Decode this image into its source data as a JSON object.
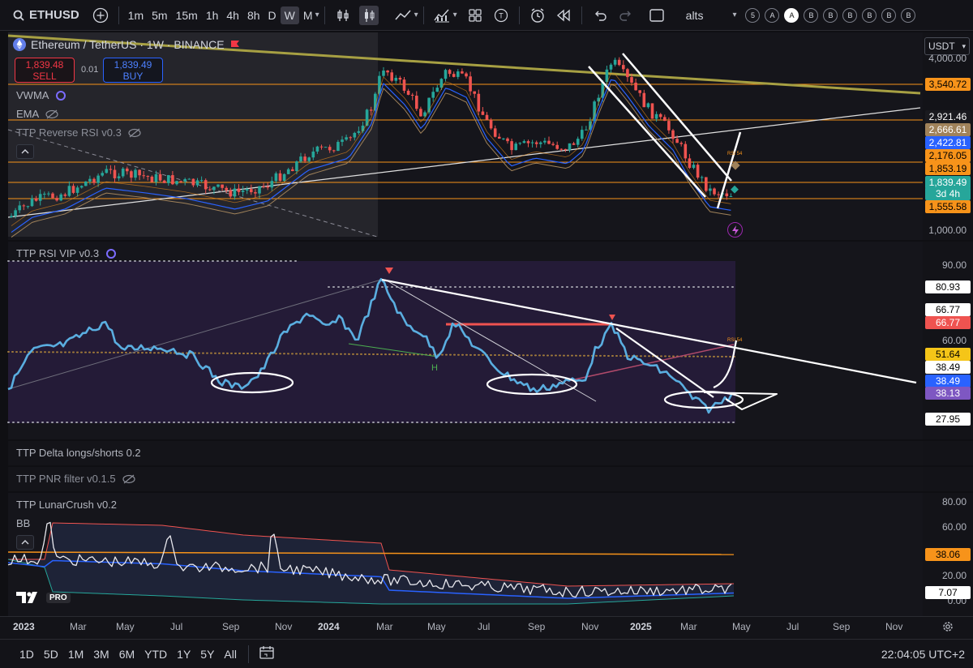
{
  "toolbar": {
    "symbol": "ETHUSD",
    "timeframes": [
      "1m",
      "5m",
      "15m",
      "1h",
      "4h",
      "8h",
      "D",
      "W",
      "M"
    ],
    "active_tf": "W",
    "layout_name": "alts",
    "circles": [
      "5",
      "A",
      "A",
      "B",
      "B",
      "B",
      "B",
      "B",
      "B"
    ]
  },
  "header": {
    "title": "Ethereum / TetherUS · 1W · BINANCE",
    "sell_price": "1,839.48",
    "sell_label": "SELL",
    "spread": "0.01",
    "buy_price": "1,839.49",
    "buy_label": "BUY",
    "currency": "USDT"
  },
  "indicators": {
    "vwma": "VWMA",
    "ema": "EMA",
    "reverse_rsi": "TTP Reverse RSI v0.3",
    "rsi_vip": "TTP RSI VIP v0.3",
    "delta": "TTP Delta longs/shorts 0.2",
    "pnr": "TTP PNR filter v0.1.5",
    "lunarcrush": "TTP LunarCrush v0.2",
    "bb": "BB",
    "h_label": "H",
    "rsi_marker": "RSI 54"
  },
  "price_axis": {
    "ticks": [
      "4,000.00",
      "1,000.00"
    ],
    "tags": [
      {
        "label": "3,540.72",
        "bg": "#f7931a",
        "fg": "#000"
      },
      {
        "label": "2,921.46",
        "bg": "#1a1a1f",
        "fg": "#fff"
      },
      {
        "label": "2,666.61",
        "bg": "#a0825a",
        "fg": "#fff"
      },
      {
        "label": "2,422.81",
        "bg": "#2962ff",
        "fg": "#fff"
      },
      {
        "label": "2,176.05",
        "bg": "#f7931a",
        "fg": "#000"
      },
      {
        "label": "1,853.19",
        "bg": "#f7931a",
        "fg": "#000"
      },
      {
        "label": "1,839.49",
        "bg": "#26a69a",
        "fg": "#fff"
      },
      {
        "label": "3d 4h",
        "bg": "#26a69a",
        "fg": "#fff"
      },
      {
        "label": "1,555.58",
        "bg": "#f7931a",
        "fg": "#000"
      }
    ]
  },
  "rsi_axis": {
    "ticks": [
      "90.00",
      "60.00"
    ],
    "tags": [
      {
        "label": "80.93",
        "bg": "#ffffff",
        "fg": "#000"
      },
      {
        "label": "66.77",
        "bg": "#ffffff",
        "fg": "#000"
      },
      {
        "label": "66.77",
        "bg": "#ef5350",
        "fg": "#fff"
      },
      {
        "label": "51.64",
        "bg": "#f5c518",
        "fg": "#000"
      },
      {
        "label": "38.49",
        "bg": "#ffffff",
        "fg": "#000"
      },
      {
        "label": "38.49",
        "bg": "#2962ff",
        "fg": "#fff"
      },
      {
        "label": "38.13",
        "bg": "#7e57c2",
        "fg": "#fff"
      },
      {
        "label": "27.95",
        "bg": "#ffffff",
        "fg": "#000"
      }
    ]
  },
  "lunar_axis": {
    "ticks": [
      "80.00",
      "60.00",
      "20.00",
      "0.00"
    ],
    "tags": [
      {
        "label": "38.06",
        "bg": "#f7931a",
        "fg": "#000"
      },
      {
        "label": "7.07",
        "bg": "#ffffff",
        "fg": "#000"
      }
    ]
  },
  "time_axis": {
    "ticks": [
      {
        "label": "2023",
        "yr": true
      },
      {
        "label": "Mar"
      },
      {
        "label": "May"
      },
      {
        "label": "Jul"
      },
      {
        "label": "Sep"
      },
      {
        "label": "Nov"
      },
      {
        "label": "2024",
        "yr": true
      },
      {
        "label": "Mar"
      },
      {
        "label": "May"
      },
      {
        "label": "Jul"
      },
      {
        "label": "Sep"
      },
      {
        "label": "Nov"
      },
      {
        "label": "2025",
        "yr": true
      },
      {
        "label": "Mar"
      },
      {
        "label": "May"
      },
      {
        "label": "Jul"
      },
      {
        "label": "Sep"
      },
      {
        "label": "Nov"
      }
    ]
  },
  "bottom": {
    "ranges": [
      "1D",
      "5D",
      "1M",
      "3M",
      "6M",
      "YTD",
      "1Y",
      "5Y",
      "All"
    ],
    "clock": "22:04:05 UTC+2",
    "logo": "PRO"
  }
}
